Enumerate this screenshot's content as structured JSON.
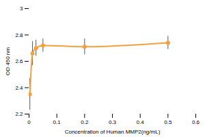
{
  "chart_data": {
    "type": "line",
    "x_label": "Concentration of Human MMP2(ng/mL)",
    "y_label": "OD 450 nm",
    "x": [
      0.003,
      0.0125,
      0.025,
      0.05,
      0.2,
      0.5
    ],
    "series": [
      {
        "name": "Human MMP2",
        "color": "#f4a041",
        "marker": "circle",
        "line_style": "solid",
        "values": [
          2.35,
          2.66,
          2.7,
          2.72,
          2.71,
          2.74
        ],
        "errors": [
          0.12,
          0.09,
          0.06,
          0.05,
          0.06,
          0.05
        ]
      }
    ],
    "xlim": [
      0,
      0.6
    ],
    "xticks": [
      0,
      0.1,
      0.2,
      0.3,
      0.4,
      0.5,
      0.6
    ],
    "ylim": [
      2.2,
      3
    ],
    "yticks": [
      2.2,
      2.4,
      2.6,
      2.8,
      3
    ],
    "grid": false
  }
}
